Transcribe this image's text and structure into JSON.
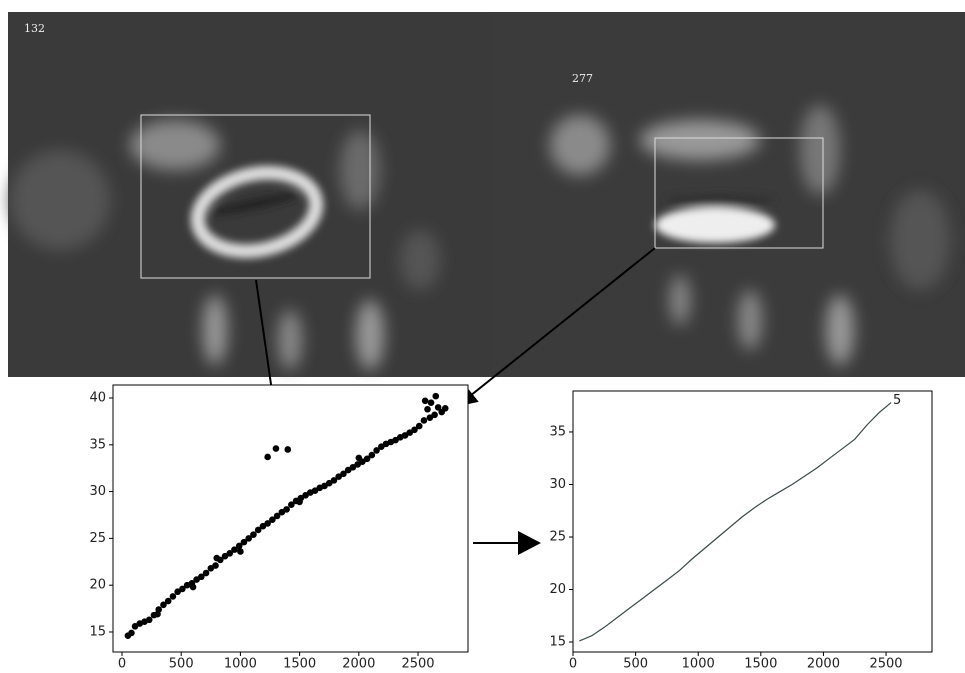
{
  "image_labels": [
    "132",
    "277"
  ],
  "chart_data": [
    {
      "type": "scatter",
      "color": "#000000",
      "x": [
        50,
        80,
        110,
        150,
        190,
        230,
        270,
        310,
        350,
        390,
        430,
        470,
        510,
        550,
        590,
        630,
        670,
        710,
        750,
        790,
        830,
        870,
        910,
        950,
        990,
        1030,
        1070,
        1110,
        1150,
        1190,
        1230,
        1270,
        1310,
        1350,
        1390,
        1430,
        1470,
        1510,
        1550,
        1590,
        1630,
        1670,
        1710,
        1750,
        1790,
        1830,
        1870,
        1910,
        1950,
        1990,
        2030,
        2070,
        2110,
        2150,
        2190,
        2230,
        2270,
        2310,
        2350,
        2390,
        2430,
        2470,
        2510,
        2550,
        2580,
        2610,
        2640,
        2670,
        2700,
        2730,
        2600,
        2650,
        2560,
        1230,
        1300,
        1400,
        600,
        1000,
        1500,
        2000,
        300,
        800
      ],
      "y": [
        14.6,
        14.9,
        15.6,
        15.9,
        16.1,
        16.3,
        16.8,
        17.4,
        17.9,
        18.3,
        18.8,
        19.3,
        19.6,
        20.0,
        20.2,
        20.6,
        20.9,
        21.3,
        21.8,
        22.1,
        22.7,
        23.1,
        23.4,
        23.8,
        24.2,
        24.6,
        25.0,
        25.4,
        25.9,
        26.3,
        26.6,
        27.0,
        27.4,
        27.8,
        28.1,
        28.6,
        29.0,
        29.3,
        29.6,
        29.9,
        30.1,
        30.4,
        30.6,
        30.9,
        31.2,
        31.6,
        31.9,
        32.3,
        32.6,
        32.9,
        33.2,
        33.5,
        33.9,
        34.4,
        34.8,
        35.1,
        35.3,
        35.5,
        35.8,
        36.0,
        36.3,
        36.6,
        37.0,
        37.6,
        38.8,
        39.5,
        38.2,
        39.0,
        38.5,
        38.9,
        37.9,
        40.2,
        39.7,
        33.7,
        34.6,
        34.5,
        19.8,
        23.6,
        28.9,
        33.6,
        16.9,
        22.9
      ],
      "xlim": [
        -76,
        2922
      ],
      "ylim": [
        12.86,
        41.39
      ],
      "xticks": [
        0,
        500,
        1000,
        1500,
        2000,
        2500
      ],
      "yticks": [
        15,
        20,
        25,
        30,
        35,
        40
      ]
    },
    {
      "type": "line",
      "color": "#3a4a4a",
      "annotation": "5",
      "x": [
        50,
        150,
        250,
        350,
        450,
        550,
        650,
        750,
        850,
        950,
        1050,
        1150,
        1250,
        1350,
        1450,
        1550,
        1650,
        1750,
        1850,
        1950,
        2050,
        2150,
        2250,
        2350,
        2450,
        2540
      ],
      "y": [
        15.1,
        15.6,
        16.4,
        17.3,
        18.2,
        19.1,
        20.0,
        20.9,
        21.8,
        22.9,
        23.9,
        24.9,
        25.9,
        26.9,
        27.8,
        28.6,
        29.3,
        30.0,
        30.8,
        31.6,
        32.5,
        33.4,
        34.3,
        35.7,
        36.9,
        37.8
      ],
      "xlim": [
        0,
        2867
      ],
      "ylim": [
        14.05,
        38.9
      ],
      "xticks": [
        0,
        500,
        1000,
        1500,
        2000,
        2500
      ],
      "yticks": [
        15,
        20,
        25,
        30,
        35
      ]
    }
  ]
}
